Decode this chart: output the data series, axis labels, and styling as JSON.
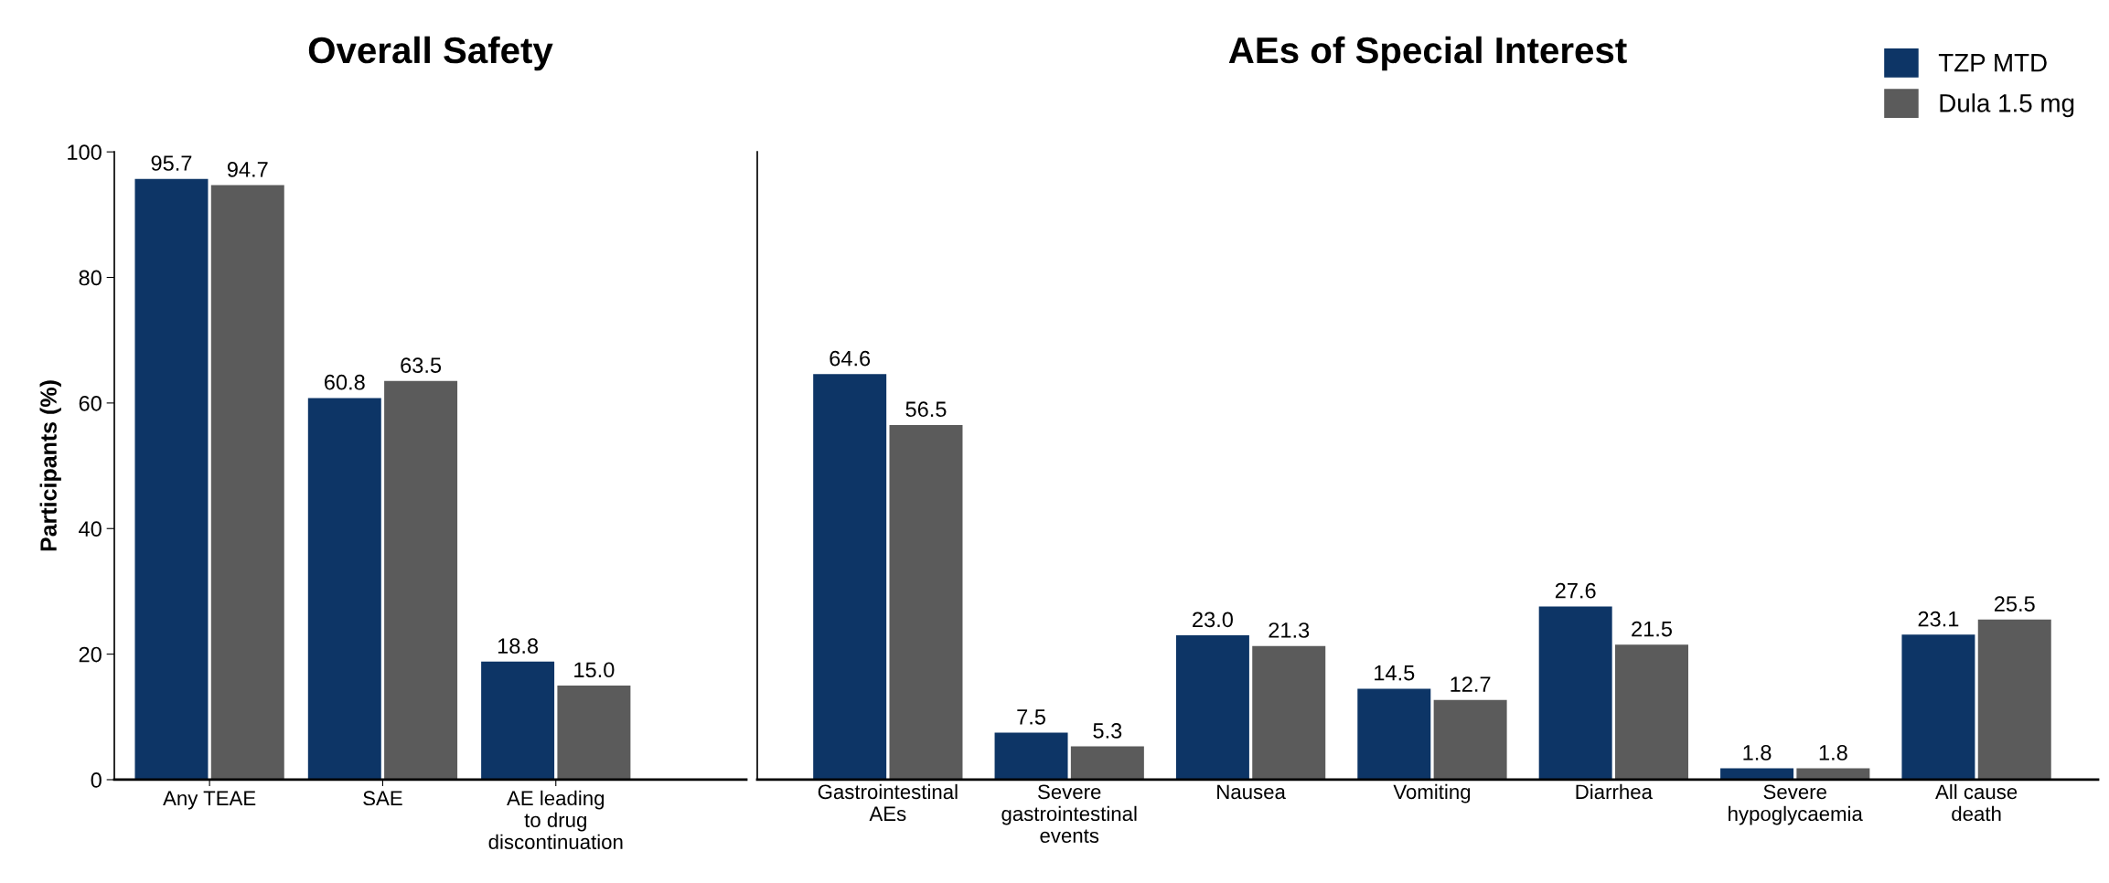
{
  "chart_data": [
    {
      "type": "bar",
      "title": "Overall Safety",
      "ylabel": "Participants (%)",
      "categories": [
        "Any TEAE",
        "SAE",
        "AE leading\nto drug\ndiscontinuation"
      ],
      "series": [
        {
          "color": "#0d3566",
          "values": [
            95.7,
            60.8,
            18.8
          ],
          "value_labels": [
            "95.7",
            "60.8",
            "18.8"
          ]
        },
        {
          "color": "#5b5b5b",
          "values": [
            94.7,
            63.5,
            15.0
          ],
          "value_labels": [
            "94.7",
            "63.5",
            "15.0"
          ]
        }
      ],
      "ylim": [
        0,
        100
      ],
      "yticks": [
        0,
        20,
        40,
        60,
        80,
        100
      ],
      "grid": false
    },
    {
      "type": "bar",
      "title": "AEs of Special Interest",
      "categories": [
        "Gastrointestinal\nAEs",
        "Severe\ngastrointestinal\nevents",
        "Nausea",
        "Vomiting",
        "Diarrhea",
        "Severe\nhypoglycaemia",
        "All cause\ndeath"
      ],
      "series": [
        {
          "name": "TZP MTD",
          "color": "#0d3566",
          "values": [
            64.6,
            7.5,
            23.0,
            14.5,
            27.6,
            1.8,
            23.1
          ],
          "value_labels": [
            "64.6",
            "7.5",
            "23.0",
            "14.5",
            "27.6",
            "1.8",
            "23.1"
          ]
        },
        {
          "name": "Dula 1.5 mg",
          "color": "#5b5b5b",
          "values": [
            56.5,
            5.3,
            21.3,
            12.7,
            21.5,
            1.8,
            25.5
          ],
          "value_labels": [
            "56.5",
            "5.3",
            "21.3",
            "12.7",
            "21.5",
            "1.8",
            "25.5"
          ]
        }
      ],
      "ylim": [
        0,
        100
      ],
      "tick_labels": "x",
      "grid": false,
      "legend": "top right"
    }
  ]
}
